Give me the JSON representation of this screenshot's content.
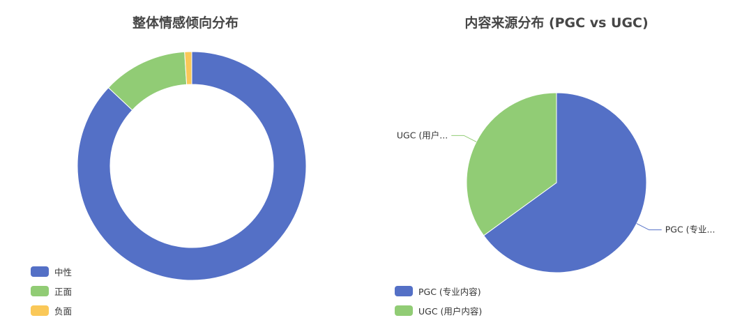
{
  "chart_data": [
    {
      "type": "pie",
      "variant": "donut",
      "title": "整体情感倾向分布",
      "categories": [
        "中性",
        "正面",
        "负面"
      ],
      "values": [
        87,
        12,
        1
      ],
      "colors": [
        "#5470c6",
        "#91cc75",
        "#fac858"
      ],
      "legend": "bottom-left",
      "slice_labels": []
    },
    {
      "type": "pie",
      "title": "内容来源分布 (PGC vs UGC)",
      "categories": [
        "PGC (专业内容)",
        "UGC (用户内容)"
      ],
      "values": [
        65,
        35
      ],
      "colors": [
        "#5470c6",
        "#91cc75"
      ],
      "legend": "bottom-left",
      "slice_labels": [
        "PGC (专业...",
        "UGC (用户..."
      ]
    }
  ]
}
